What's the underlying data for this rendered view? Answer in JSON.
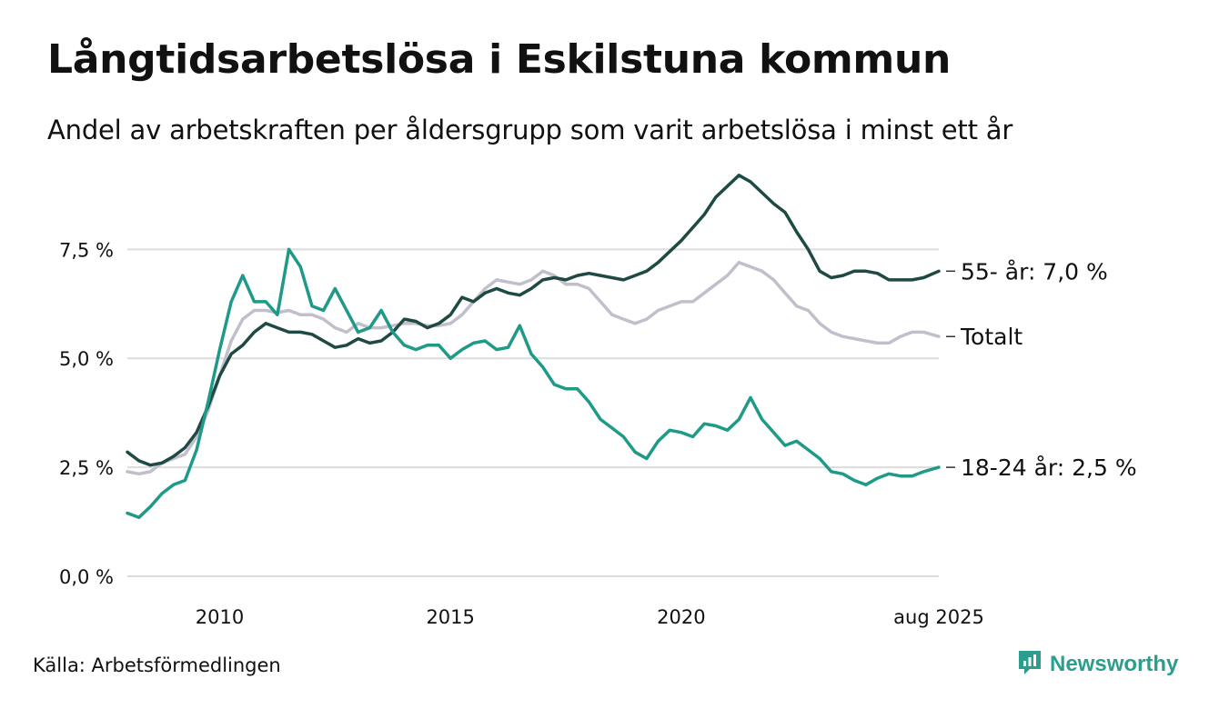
{
  "title": "Långtidsarbetslösa i Eskilstuna kommun",
  "subtitle": "Andel av arbetskraften per åldersgrupp som varit arbetslösa i minst ett år",
  "source": "Källa: Arbetsförmedlingen",
  "brand": "Newsworthy",
  "colors": {
    "series_55": "#1f4a44",
    "series_totalt": "#c2bfcc",
    "series_18_24": "#1f9a88",
    "gridline": "#dcdcdc",
    "brand": "#2b9e8d"
  },
  "icons": {
    "brand_logo": "newsworthy-logo-icon"
  },
  "chart_data": {
    "type": "line",
    "x_unit": "year",
    "xlim": [
      2008.0,
      2025.58
    ],
    "ylim": [
      0,
      9.3
    ],
    "y_ticks": [
      {
        "value": 0,
        "label": "0,0 %"
      },
      {
        "value": 2.5,
        "label": "2,5 %"
      },
      {
        "value": 5,
        "label": "5,0 %"
      },
      {
        "value": 7.5,
        "label": "7,5 %"
      }
    ],
    "x_ticks": [
      {
        "value": 2010,
        "label": "2010"
      },
      {
        "value": 2015,
        "label": "2015"
      },
      {
        "value": 2020,
        "label": "2020"
      },
      {
        "value": 2025.58,
        "label": "aug 2025"
      }
    ],
    "grid": "horizontal",
    "series": [
      {
        "name": "Totalt",
        "end_label": "Totalt",
        "color": "#c2bfcc",
        "x": [
          2008.0,
          2008.25,
          2008.5,
          2008.75,
          2009.0,
          2009.25,
          2009.5,
          2009.75,
          2010.0,
          2010.25,
          2010.5,
          2010.75,
          2011.0,
          2011.25,
          2011.5,
          2011.75,
          2012.0,
          2012.25,
          2012.5,
          2012.75,
          2013.0,
          2013.25,
          2013.5,
          2013.75,
          2014.0,
          2014.25,
          2014.5,
          2014.75,
          2015.0,
          2015.25,
          2015.5,
          2015.75,
          2016.0,
          2016.25,
          2016.5,
          2016.75,
          2017.0,
          2017.25,
          2017.5,
          2017.75,
          2018.0,
          2018.25,
          2018.5,
          2018.75,
          2019.0,
          2019.25,
          2019.5,
          2019.75,
          2020.0,
          2020.25,
          2020.5,
          2020.75,
          2021.0,
          2021.25,
          2021.5,
          2021.75,
          2022.0,
          2022.25,
          2022.5,
          2022.75,
          2023.0,
          2023.25,
          2023.5,
          2023.75,
          2024.0,
          2024.25,
          2024.5,
          2024.75,
          2025.0,
          2025.25,
          2025.58
        ],
        "values": [
          2.4,
          2.35,
          2.4,
          2.6,
          2.7,
          2.8,
          3.2,
          3.8,
          4.6,
          5.4,
          5.9,
          6.1,
          6.1,
          6.05,
          6.1,
          6.0,
          6.0,
          5.9,
          5.7,
          5.6,
          5.8,
          5.7,
          5.7,
          5.75,
          5.8,
          5.8,
          5.75,
          5.75,
          5.8,
          6.0,
          6.3,
          6.6,
          6.8,
          6.75,
          6.7,
          6.8,
          7.0,
          6.9,
          6.7,
          6.7,
          6.6,
          6.3,
          6.0,
          5.9,
          5.8,
          5.9,
          6.1,
          6.2,
          6.3,
          6.3,
          6.5,
          6.7,
          6.9,
          7.2,
          7.1,
          7.0,
          6.8,
          6.5,
          6.2,
          6.1,
          5.8,
          5.6,
          5.5,
          5.45,
          5.4,
          5.35,
          5.35,
          5.5,
          5.6,
          5.6,
          5.5
        ]
      },
      {
        "name": "55- år",
        "end_label": "55- år: 7,0 %",
        "color": "#1f4a44",
        "x": [
          2008.0,
          2008.25,
          2008.5,
          2008.75,
          2009.0,
          2009.25,
          2009.5,
          2009.75,
          2010.0,
          2010.25,
          2010.5,
          2010.75,
          2011.0,
          2011.25,
          2011.5,
          2011.75,
          2012.0,
          2012.25,
          2012.5,
          2012.75,
          2013.0,
          2013.25,
          2013.5,
          2013.75,
          2014.0,
          2014.25,
          2014.5,
          2014.75,
          2015.0,
          2015.25,
          2015.5,
          2015.75,
          2016.0,
          2016.25,
          2016.5,
          2016.75,
          2017.0,
          2017.25,
          2017.5,
          2017.75,
          2018.0,
          2018.25,
          2018.5,
          2018.75,
          2019.0,
          2019.25,
          2019.5,
          2019.75,
          2020.0,
          2020.25,
          2020.5,
          2020.75,
          2021.0,
          2021.25,
          2021.5,
          2021.75,
          2022.0,
          2022.25,
          2022.5,
          2022.75,
          2023.0,
          2023.25,
          2023.5,
          2023.75,
          2024.0,
          2024.25,
          2024.5,
          2024.75,
          2025.0,
          2025.25,
          2025.58
        ],
        "values": [
          2.85,
          2.65,
          2.55,
          2.6,
          2.75,
          2.95,
          3.3,
          3.9,
          4.6,
          5.1,
          5.3,
          5.6,
          5.8,
          5.7,
          5.6,
          5.6,
          5.55,
          5.4,
          5.25,
          5.3,
          5.45,
          5.35,
          5.4,
          5.6,
          5.9,
          5.85,
          5.7,
          5.8,
          6.0,
          6.4,
          6.3,
          6.5,
          6.6,
          6.5,
          6.45,
          6.6,
          6.8,
          6.85,
          6.8,
          6.9,
          6.95,
          6.9,
          6.85,
          6.8,
          6.9,
          7.0,
          7.2,
          7.45,
          7.7,
          8.0,
          8.3,
          8.7,
          8.95,
          9.2,
          9.05,
          8.8,
          8.55,
          8.35,
          7.9,
          7.5,
          7.0,
          6.85,
          6.9,
          7.0,
          7.0,
          6.95,
          6.8,
          6.8,
          6.8,
          6.85,
          7.0
        ]
      },
      {
        "name": "18-24 år",
        "end_label": "18-24 år: 2,5 %",
        "color": "#1f9a88",
        "x": [
          2008.0,
          2008.25,
          2008.5,
          2008.75,
          2009.0,
          2009.25,
          2009.5,
          2009.75,
          2010.0,
          2010.25,
          2010.5,
          2010.75,
          2011.0,
          2011.25,
          2011.5,
          2011.75,
          2012.0,
          2012.25,
          2012.5,
          2012.75,
          2013.0,
          2013.25,
          2013.5,
          2013.75,
          2014.0,
          2014.25,
          2014.5,
          2014.75,
          2015.0,
          2015.25,
          2015.5,
          2015.75,
          2016.0,
          2016.25,
          2016.5,
          2016.75,
          2017.0,
          2017.25,
          2017.5,
          2017.75,
          2018.0,
          2018.25,
          2018.5,
          2018.75,
          2019.0,
          2019.25,
          2019.5,
          2019.75,
          2020.0,
          2020.25,
          2020.5,
          2020.75,
          2021.0,
          2021.25,
          2021.5,
          2021.75,
          2022.0,
          2022.25,
          2022.5,
          2022.75,
          2023.0,
          2023.25,
          2023.5,
          2023.75,
          2024.0,
          2024.25,
          2024.5,
          2024.75,
          2025.0,
          2025.25,
          2025.58
        ],
        "values": [
          1.45,
          1.35,
          1.6,
          1.9,
          2.1,
          2.2,
          2.9,
          4.0,
          5.2,
          6.3,
          6.9,
          6.3,
          6.3,
          6.0,
          7.5,
          7.1,
          6.2,
          6.1,
          6.6,
          6.1,
          5.6,
          5.7,
          6.1,
          5.6,
          5.3,
          5.2,
          5.3,
          5.3,
          5.0,
          5.2,
          5.35,
          5.4,
          5.2,
          5.25,
          5.75,
          5.1,
          4.8,
          4.4,
          4.3,
          4.3,
          4.0,
          3.6,
          3.4,
          3.2,
          2.85,
          2.7,
          3.1,
          3.35,
          3.3,
          3.2,
          3.5,
          3.45,
          3.35,
          3.6,
          4.1,
          3.6,
          3.3,
          3.0,
          3.1,
          2.9,
          2.7,
          2.4,
          2.35,
          2.2,
          2.1,
          2.25,
          2.35,
          2.3,
          2.3,
          2.4,
          2.5
        ]
      }
    ]
  }
}
